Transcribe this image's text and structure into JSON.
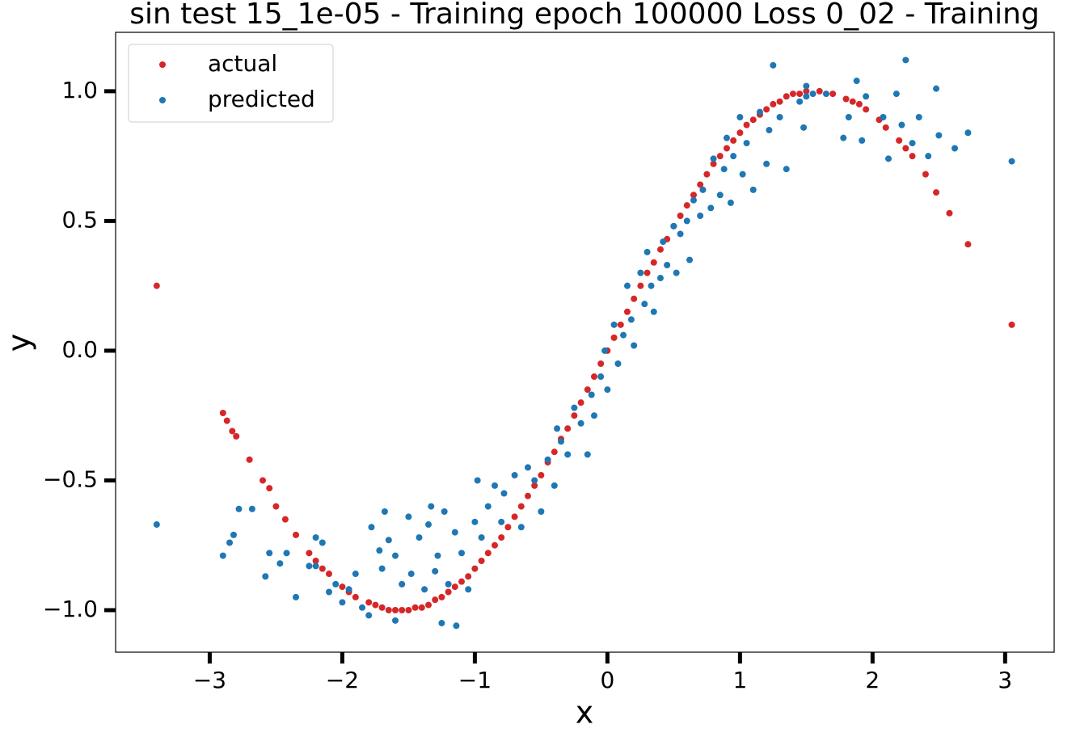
{
  "chart_data": {
    "type": "scatter",
    "title": "sin test 15_1e-05 - Training epoch 100000 Loss 0_02 - Training",
    "x_label": "x",
    "y_label": "y",
    "xlim": [
      -3.71,
      3.37
    ],
    "ylim": [
      -1.162,
      1.227
    ],
    "xticks": [
      {
        "value": -3,
        "label": "−3"
      },
      {
        "value": -2,
        "label": "−2"
      },
      {
        "value": -1,
        "label": "−1"
      },
      0,
      1,
      2,
      3
    ],
    "yticks": [
      {
        "value": -1.0,
        "label": "−1.0"
      },
      {
        "value": -0.5,
        "label": "−0.5"
      },
      {
        "value": 0.0,
        "label": "0.0"
      },
      {
        "value": 0.5,
        "label": "0.5"
      },
      {
        "value": 1.0,
        "label": "1.0"
      }
    ],
    "legend": "upper left",
    "series": [
      {
        "name": "actual",
        "color": "#d62728",
        "x": [
          -3.4,
          -2.9,
          -2.87,
          -2.83,
          -2.8,
          -2.7,
          -2.6,
          -2.55,
          -2.5,
          -2.43,
          -2.35,
          -2.25,
          -2.2,
          -2.15,
          -2.1,
          -2.0,
          -1.95,
          -1.9,
          -1.8,
          -1.75,
          -1.7,
          -1.65,
          -1.6,
          -1.55,
          -1.5,
          -1.45,
          -1.4,
          -1.35,
          -1.3,
          -1.25,
          -1.2,
          -1.15,
          -1.1,
          -1.05,
          -1.0,
          -0.95,
          -0.9,
          -0.85,
          -0.8,
          -0.75,
          -0.7,
          -0.65,
          -0.6,
          -0.55,
          -0.5,
          -0.45,
          -0.4,
          -0.35,
          -0.3,
          -0.25,
          -0.2,
          -0.15,
          -0.1,
          -0.05,
          0.0,
          0.05,
          0.1,
          0.15,
          0.2,
          0.25,
          0.3,
          0.35,
          0.4,
          0.45,
          0.5,
          0.55,
          0.6,
          0.65,
          0.7,
          0.75,
          0.8,
          0.85,
          0.9,
          0.95,
          1.0,
          1.05,
          1.1,
          1.15,
          1.2,
          1.25,
          1.3,
          1.35,
          1.4,
          1.45,
          1.5,
          1.6,
          1.7,
          1.8,
          1.85,
          1.9,
          1.95,
          2.05,
          2.1,
          2.2,
          2.25,
          2.3,
          2.4,
          2.48,
          2.58,
          2.72,
          3.05
        ],
        "values": [
          0.25,
          -0.24,
          -0.27,
          -0.31,
          -0.33,
          -0.42,
          -0.5,
          -0.53,
          -0.6,
          -0.65,
          -0.71,
          -0.78,
          -0.81,
          -0.84,
          -0.86,
          -0.91,
          -0.93,
          -0.95,
          -0.97,
          -0.98,
          -0.99,
          -1.0,
          -1.0,
          -1.0,
          -1.0,
          -0.99,
          -0.99,
          -0.98,
          -0.96,
          -0.95,
          -0.93,
          -0.91,
          -0.89,
          -0.87,
          -0.84,
          -0.81,
          -0.78,
          -0.75,
          -0.72,
          -0.68,
          -0.64,
          -0.6,
          -0.56,
          -0.52,
          -0.48,
          -0.43,
          -0.39,
          -0.34,
          -0.3,
          -0.25,
          -0.2,
          -0.15,
          -0.1,
          -0.05,
          0.0,
          0.05,
          0.1,
          0.15,
          0.2,
          0.25,
          0.3,
          0.34,
          0.39,
          0.43,
          0.48,
          0.52,
          0.56,
          0.6,
          0.64,
          0.68,
          0.72,
          0.75,
          0.78,
          0.81,
          0.84,
          0.87,
          0.89,
          0.91,
          0.93,
          0.95,
          0.96,
          0.98,
          0.99,
          0.99,
          1.0,
          1.0,
          0.99,
          0.97,
          0.96,
          0.95,
          0.93,
          0.89,
          0.86,
          0.81,
          0.78,
          0.75,
          0.68,
          0.61,
          0.53,
          0.41,
          0.1
        ]
      },
      {
        "name": "predicted",
        "color": "#1f77b4",
        "x": [
          -3.4,
          -2.9,
          -2.85,
          -2.82,
          -2.78,
          -2.68,
          -2.58,
          -2.55,
          -2.47,
          -2.42,
          -2.35,
          -2.25,
          -2.2,
          -2.15,
          -2.2,
          -2.1,
          -2.05,
          -2.0,
          -1.95,
          -1.9,
          -1.85,
          -1.8,
          -1.78,
          -1.72,
          -1.7,
          -1.68,
          -1.65,
          -1.6,
          -1.6,
          -1.55,
          -1.5,
          -1.48,
          -1.42,
          -1.38,
          -1.35,
          -1.33,
          -1.3,
          -1.28,
          -1.25,
          -1.23,
          -1.2,
          -1.15,
          -1.14,
          -1.1,
          -1.05,
          -1.0,
          -0.98,
          -0.95,
          -0.9,
          -0.85,
          -0.8,
          -0.78,
          -0.7,
          -0.65,
          -0.6,
          -0.55,
          -0.5,
          -0.45,
          -0.4,
          -0.38,
          -0.35,
          -0.3,
          -0.25,
          -0.2,
          -0.15,
          -0.12,
          -0.1,
          -0.05,
          -0.02,
          0.0,
          0.05,
          0.08,
          0.12,
          0.15,
          0.18,
          0.2,
          0.25,
          0.28,
          0.3,
          0.33,
          0.35,
          0.4,
          0.42,
          0.45,
          0.5,
          0.52,
          0.55,
          0.6,
          0.62,
          0.65,
          0.7,
          0.72,
          0.78,
          0.8,
          0.85,
          0.88,
          0.9,
          0.93,
          0.95,
          1.0,
          1.02,
          1.05,
          1.1,
          1.15,
          1.2,
          1.22,
          1.25,
          1.3,
          1.35,
          1.45,
          1.48,
          1.5,
          1.5,
          1.55,
          1.65,
          1.78,
          1.82,
          1.88,
          1.92,
          1.95,
          2.08,
          2.12,
          2.18,
          2.22,
          2.25,
          2.3,
          2.35,
          2.42,
          2.48,
          2.5,
          2.62,
          2.72,
          3.05
        ],
        "values": [
          -0.67,
          -0.79,
          -0.74,
          -0.71,
          -0.61,
          -0.61,
          -0.87,
          -0.78,
          -0.82,
          -0.78,
          -0.95,
          -0.83,
          -0.72,
          -0.74,
          -0.83,
          -0.93,
          -0.9,
          -0.97,
          -0.92,
          -0.86,
          -0.99,
          -1.02,
          -0.68,
          -0.77,
          -0.84,
          -0.62,
          -0.73,
          -0.79,
          -1.04,
          -0.9,
          -0.64,
          -0.86,
          -0.72,
          -0.92,
          -0.67,
          -0.6,
          -0.85,
          -0.79,
          -1.05,
          -0.62,
          -0.9,
          -0.7,
          -1.06,
          -0.78,
          -0.92,
          -0.66,
          -0.5,
          -0.72,
          -0.6,
          -0.52,
          -0.66,
          -0.55,
          -0.48,
          -0.68,
          -0.45,
          -0.5,
          -0.62,
          -0.42,
          -0.52,
          -0.3,
          -0.35,
          -0.4,
          -0.22,
          -0.28,
          -0.4,
          -0.17,
          -0.25,
          -0.1,
          0.0,
          -0.15,
          0.1,
          -0.05,
          0.06,
          0.25,
          0.12,
          0.02,
          0.3,
          0.18,
          0.38,
          0.25,
          0.15,
          0.28,
          0.42,
          0.33,
          0.48,
          0.3,
          0.45,
          0.5,
          0.35,
          0.58,
          0.52,
          0.62,
          0.55,
          0.74,
          0.6,
          0.7,
          0.82,
          0.57,
          0.75,
          0.9,
          0.68,
          0.8,
          0.62,
          0.92,
          0.72,
          0.85,
          1.1,
          0.9,
          0.7,
          0.96,
          0.86,
          0.98,
          1.02,
          0.99,
          0.99,
          0.82,
          0.9,
          1.04,
          0.81,
          0.98,
          0.9,
          0.74,
          0.99,
          0.87,
          1.12,
          0.8,
          0.9,
          0.75,
          1.01,
          0.83,
          0.78,
          0.84,
          0.73
        ]
      }
    ]
  }
}
